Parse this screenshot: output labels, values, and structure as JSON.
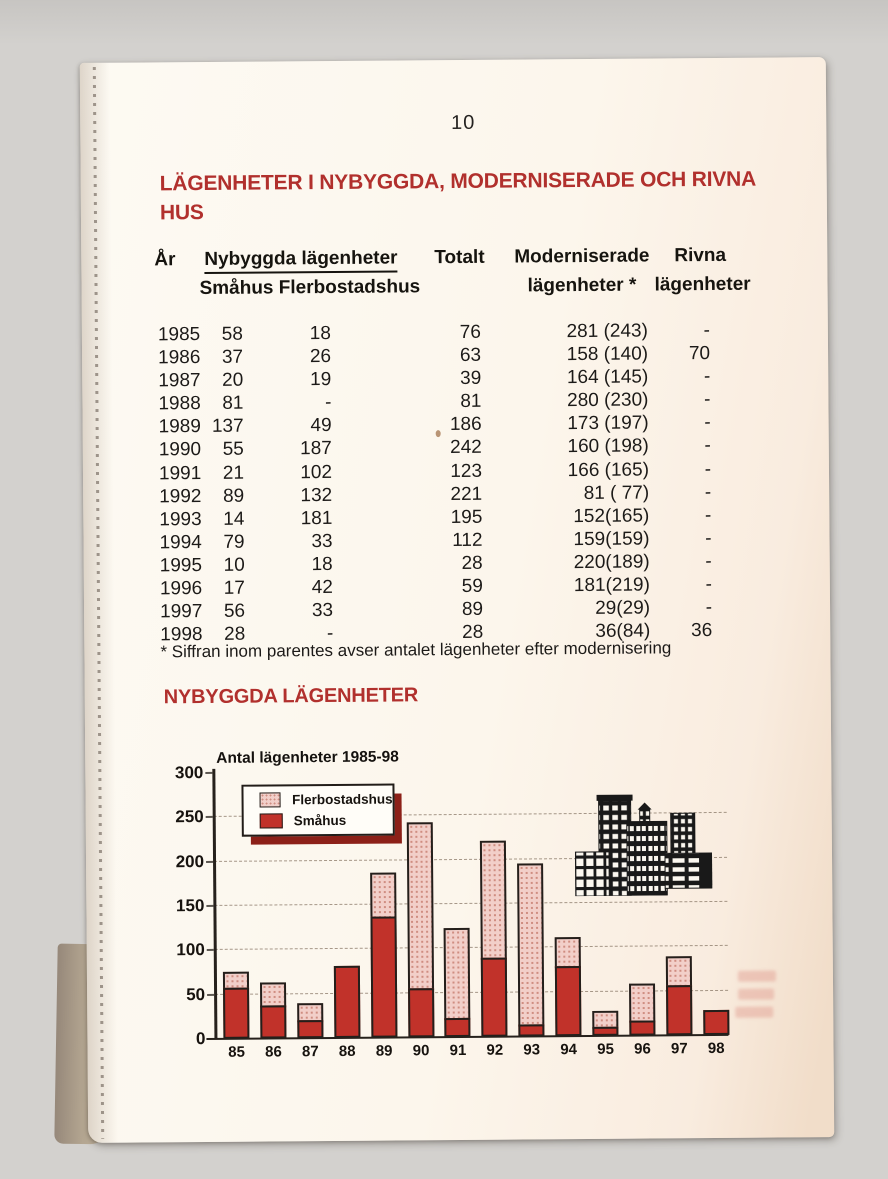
{
  "scan": {
    "page_number": "10"
  },
  "headings": {
    "main_line1": "LÄGENHETER I NYBYGGDA, MODERNISERADE OCH RIVNA",
    "main_line2": "HUS",
    "section2": "NYBYGGDA LÄGENHETER"
  },
  "table": {
    "header": {
      "col_year": "År",
      "group_nybyggda": "Nybyggda lägenheter",
      "sub_nybyggda": "Småhus Flerbostadshus",
      "col_totalt": "Totalt",
      "col_moderniserade_line1": "Moderniserade",
      "col_moderniserade_line2": "lägenheter *",
      "col_rivna_line1": "Rivna",
      "col_rivna_line2": "lägenheter"
    },
    "rows": [
      [
        "1985",
        "58",
        "18",
        "76",
        "281 (243)",
        "-"
      ],
      [
        "1986",
        "37",
        "26",
        "63",
        "158 (140)",
        "70"
      ],
      [
        "1987",
        "20",
        "19",
        "39",
        "164 (145)",
        "-"
      ],
      [
        "1988",
        "81",
        "-",
        "81",
        "280 (230)",
        "-"
      ],
      [
        "1989",
        "137",
        "49",
        "186",
        "173 (197)",
        "-"
      ],
      [
        "1990",
        "55",
        "187",
        "242",
        "160 (198)",
        "-"
      ],
      [
        "1991",
        "21",
        "102",
        "123",
        "166 (165)",
        "-"
      ],
      [
        "1992",
        "89",
        "132",
        "221",
        "81 ( 77)",
        "-"
      ],
      [
        "1993",
        "14",
        "181",
        "195",
        "152(165)",
        "-"
      ],
      [
        "1994",
        "79",
        "33",
        "112",
        "159(159)",
        "-"
      ],
      [
        "1995",
        "10",
        "18",
        "28",
        "220(189)",
        "-"
      ],
      [
        "1996",
        "17",
        "42",
        "59",
        "181(219)",
        "-"
      ],
      [
        "1997",
        "56",
        "33",
        "89",
        "29(29)",
        "-"
      ],
      [
        "1998",
        "28",
        "-",
        "28",
        "36(84)",
        "36"
      ]
    ],
    "footnote": "* Siffran inom parentes avser antalet lägenheter efter modernisering"
  },
  "chart_data": {
    "type": "bar",
    "stacked": true,
    "title": "Antal lägenheter 1985-98",
    "categories": [
      "85",
      "86",
      "87",
      "88",
      "89",
      "90",
      "91",
      "92",
      "93",
      "94",
      "95",
      "96",
      "97",
      "98"
    ],
    "series": [
      {
        "name": "Småhus",
        "color": "#c1322a",
        "values": [
          58,
          37,
          20,
          81,
          137,
          55,
          21,
          89,
          14,
          79,
          10,
          17,
          56,
          28
        ]
      },
      {
        "name": "Flerbostadshus",
        "color": "#f2cfc9",
        "values": [
          18,
          26,
          19,
          0,
          49,
          187,
          102,
          132,
          181,
          33,
          18,
          42,
          33,
          0
        ]
      }
    ],
    "xlabel": "",
    "ylabel": "",
    "ylim": [
      0,
      300
    ],
    "yticks": [
      0,
      50,
      100,
      150,
      200,
      250,
      300
    ],
    "grid": "dashed-horizontal",
    "legend_position": "top-left",
    "legend_order": [
      "Flerbostadshus",
      "Småhus"
    ],
    "bar_outline_color": "#241f1b"
  },
  "colors": {
    "heading_red": "#b1302d",
    "bar_red": "#c1322a",
    "bar_pink": "#f2cfc9",
    "legend_shadow_red": "#8c2018",
    "page_background": "#fcf6ec",
    "scanner_background": "#d3d1ce"
  }
}
